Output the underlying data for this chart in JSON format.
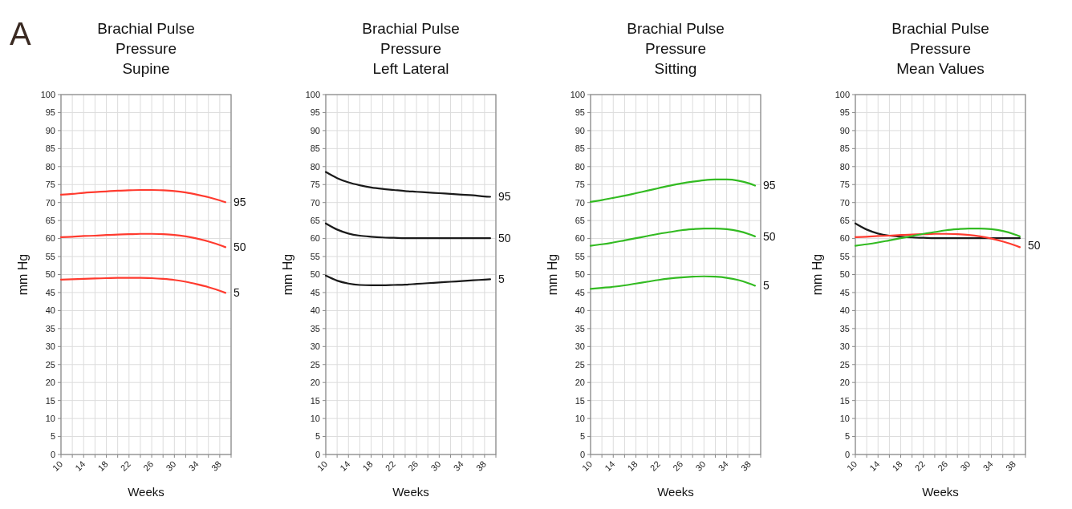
{
  "chart_data": [
    {
      "type": "line",
      "title": "Brachial Pulse\nPressure\nSupine",
      "xlabel": "Weeks",
      "ylabel": "mm Hg",
      "annotations": [
        "A"
      ],
      "grid": true,
      "xlim": [
        10,
        40
      ],
      "ylim": [
        0,
        100
      ],
      "xticks": [
        10,
        {
          "value": 12,
          "label": null
        },
        14,
        {
          "value": 16,
          "label": null
        },
        18,
        {
          "value": 20,
          "label": null
        },
        22,
        {
          "value": 24,
          "label": null
        },
        26,
        {
          "value": 28,
          "label": null
        },
        30,
        {
          "value": 32,
          "label": null
        },
        34,
        {
          "value": 36,
          "label": null
        },
        38,
        {
          "value": 40,
          "label": null
        }
      ],
      "yticks": [
        0,
        5,
        10,
        15,
        20,
        25,
        30,
        35,
        40,
        45,
        50,
        55,
        60,
        65,
        70,
        75,
        80,
        85,
        90,
        95,
        100
      ],
      "x": [
        10,
        12,
        14,
        16,
        18,
        20,
        22,
        24,
        26,
        28,
        30,
        32,
        34,
        36,
        38,
        39
      ],
      "series": [
        {
          "name": "95",
          "color": "#ff3b2f",
          "values": [
            72.2,
            72.4,
            72.7,
            72.9,
            73.1,
            73.3,
            73.4,
            73.5,
            73.5,
            73.4,
            73.2,
            72.8,
            72.2,
            71.5,
            70.6,
            70.1
          ]
        },
        {
          "name": "50",
          "color": "#ff3b2f",
          "values": [
            60.4,
            60.5,
            60.7,
            60.8,
            61.0,
            61.1,
            61.2,
            61.3,
            61.3,
            61.2,
            61.0,
            60.6,
            60.0,
            59.2,
            58.2,
            57.6
          ]
        },
        {
          "name": "5",
          "color": "#ff3b2f",
          "values": [
            48.6,
            48.7,
            48.8,
            48.9,
            49.0,
            49.1,
            49.1,
            49.1,
            49.0,
            48.8,
            48.5,
            48.0,
            47.3,
            46.5,
            45.5,
            44.9
          ]
        }
      ]
    },
    {
      "type": "line",
      "title": "Brachial Pulse\nPressure\nLeft Lateral",
      "xlabel": "Weeks",
      "ylabel": "mm Hg",
      "grid": true,
      "xlim": [
        10,
        40
      ],
      "ylim": [
        0,
        100
      ],
      "xticks": [
        10,
        {
          "value": 12,
          "label": null
        },
        14,
        {
          "value": 16,
          "label": null
        },
        18,
        {
          "value": 20,
          "label": null
        },
        22,
        {
          "value": 24,
          "label": null
        },
        26,
        {
          "value": 28,
          "label": null
        },
        30,
        {
          "value": 32,
          "label": null
        },
        34,
        {
          "value": 36,
          "label": null
        },
        38,
        {
          "value": 40,
          "label": null
        }
      ],
      "yticks": [
        0,
        5,
        10,
        15,
        20,
        25,
        30,
        35,
        40,
        45,
        50,
        55,
        60,
        65,
        70,
        75,
        80,
        85,
        90,
        95,
        100
      ],
      "x": [
        10,
        12,
        14,
        16,
        18,
        20,
        22,
        24,
        26,
        28,
        30,
        32,
        34,
        36,
        38,
        39
      ],
      "series": [
        {
          "name": "95",
          "color": "#1a1a1a",
          "values": [
            78.5,
            76.8,
            75.6,
            74.8,
            74.2,
            73.8,
            73.5,
            73.2,
            73.0,
            72.8,
            72.6,
            72.4,
            72.2,
            72.0,
            71.7,
            71.6
          ]
        },
        {
          "name": "50",
          "color": "#1a1a1a",
          "values": [
            64.2,
            62.5,
            61.4,
            60.8,
            60.5,
            60.3,
            60.2,
            60.1,
            60.1,
            60.1,
            60.1,
            60.1,
            60.1,
            60.1,
            60.1,
            60.1
          ]
        },
        {
          "name": "5",
          "color": "#1a1a1a",
          "values": [
            49.7,
            48.3,
            47.5,
            47.1,
            47.0,
            47.0,
            47.1,
            47.2,
            47.4,
            47.6,
            47.8,
            48.0,
            48.2,
            48.4,
            48.6,
            48.7
          ]
        }
      ]
    },
    {
      "type": "line",
      "title": "Brachial Pulse\nPressure\nSitting",
      "xlabel": "Weeks",
      "ylabel": "mm Hg",
      "grid": true,
      "xlim": [
        10,
        40
      ],
      "ylim": [
        0,
        100
      ],
      "xticks": [
        10,
        {
          "value": 12,
          "label": null
        },
        14,
        {
          "value": 16,
          "label": null
        },
        18,
        {
          "value": 20,
          "label": null
        },
        22,
        {
          "value": 24,
          "label": null
        },
        26,
        {
          "value": 28,
          "label": null
        },
        30,
        {
          "value": 32,
          "label": null
        },
        34,
        {
          "value": 36,
          "label": null
        },
        38,
        {
          "value": 40,
          "label": null
        }
      ],
      "yticks": [
        0,
        5,
        10,
        15,
        20,
        25,
        30,
        35,
        40,
        45,
        50,
        55,
        60,
        65,
        70,
        75,
        80,
        85,
        90,
        95,
        100
      ],
      "x": [
        10,
        12,
        14,
        16,
        18,
        20,
        22,
        24,
        26,
        28,
        30,
        32,
        34,
        36,
        38,
        39
      ],
      "series": [
        {
          "name": "95",
          "color": "#33bb22",
          "values": [
            70.2,
            70.7,
            71.3,
            71.9,
            72.6,
            73.3,
            74.0,
            74.7,
            75.3,
            75.8,
            76.2,
            76.4,
            76.4,
            76.1,
            75.3,
            74.7
          ]
        },
        {
          "name": "50",
          "color": "#33bb22",
          "values": [
            58.0,
            58.4,
            58.9,
            59.5,
            60.1,
            60.7,
            61.3,
            61.8,
            62.3,
            62.6,
            62.8,
            62.8,
            62.6,
            62.1,
            61.2,
            60.6
          ]
        },
        {
          "name": "5",
          "color": "#33bb22",
          "values": [
            46.0,
            46.3,
            46.6,
            47.0,
            47.5,
            48.0,
            48.5,
            48.9,
            49.2,
            49.4,
            49.5,
            49.4,
            49.1,
            48.5,
            47.5,
            46.9
          ]
        }
      ]
    },
    {
      "type": "line",
      "title": "Brachial Pulse\nPressure\nMean Values",
      "xlabel": "Weeks",
      "ylabel": "mm Hg",
      "grid": true,
      "xlim": [
        10,
        40
      ],
      "ylim": [
        0,
        100
      ],
      "annotations": [
        {
          "text": "50",
          "x": 39,
          "y": 60
        }
      ],
      "xticks": [
        10,
        {
          "value": 12,
          "label": null
        },
        14,
        {
          "value": 16,
          "label": null
        },
        18,
        {
          "value": 20,
          "label": null
        },
        22,
        {
          "value": 24,
          "label": null
        },
        26,
        {
          "value": 28,
          "label": null
        },
        30,
        {
          "value": 32,
          "label": null
        },
        34,
        {
          "value": 36,
          "label": null
        },
        38,
        {
          "value": 40,
          "label": null
        }
      ],
      "yticks": [
        0,
        5,
        10,
        15,
        20,
        25,
        30,
        35,
        40,
        45,
        50,
        55,
        60,
        65,
        70,
        75,
        80,
        85,
        90,
        95,
        100
      ],
      "x": [
        10,
        12,
        14,
        16,
        18,
        20,
        22,
        24,
        26,
        28,
        30,
        32,
        34,
        36,
        38,
        39
      ],
      "series": [
        {
          "color": "#1a1a1a",
          "values": [
            64.2,
            62.5,
            61.4,
            60.8,
            60.5,
            60.3,
            60.2,
            60.1,
            60.1,
            60.1,
            60.1,
            60.1,
            60.1,
            60.1,
            60.1,
            60.1
          ]
        },
        {
          "color": "#ff3b2f",
          "values": [
            60.4,
            60.5,
            60.7,
            60.8,
            61.0,
            61.1,
            61.2,
            61.3,
            61.3,
            61.2,
            61.0,
            60.6,
            60.0,
            59.2,
            58.2,
            57.6
          ]
        },
        {
          "color": "#33bb22",
          "values": [
            58.0,
            58.4,
            58.9,
            59.5,
            60.1,
            60.7,
            61.3,
            61.8,
            62.3,
            62.6,
            62.8,
            62.8,
            62.6,
            62.1,
            61.2,
            60.6
          ]
        }
      ]
    }
  ]
}
